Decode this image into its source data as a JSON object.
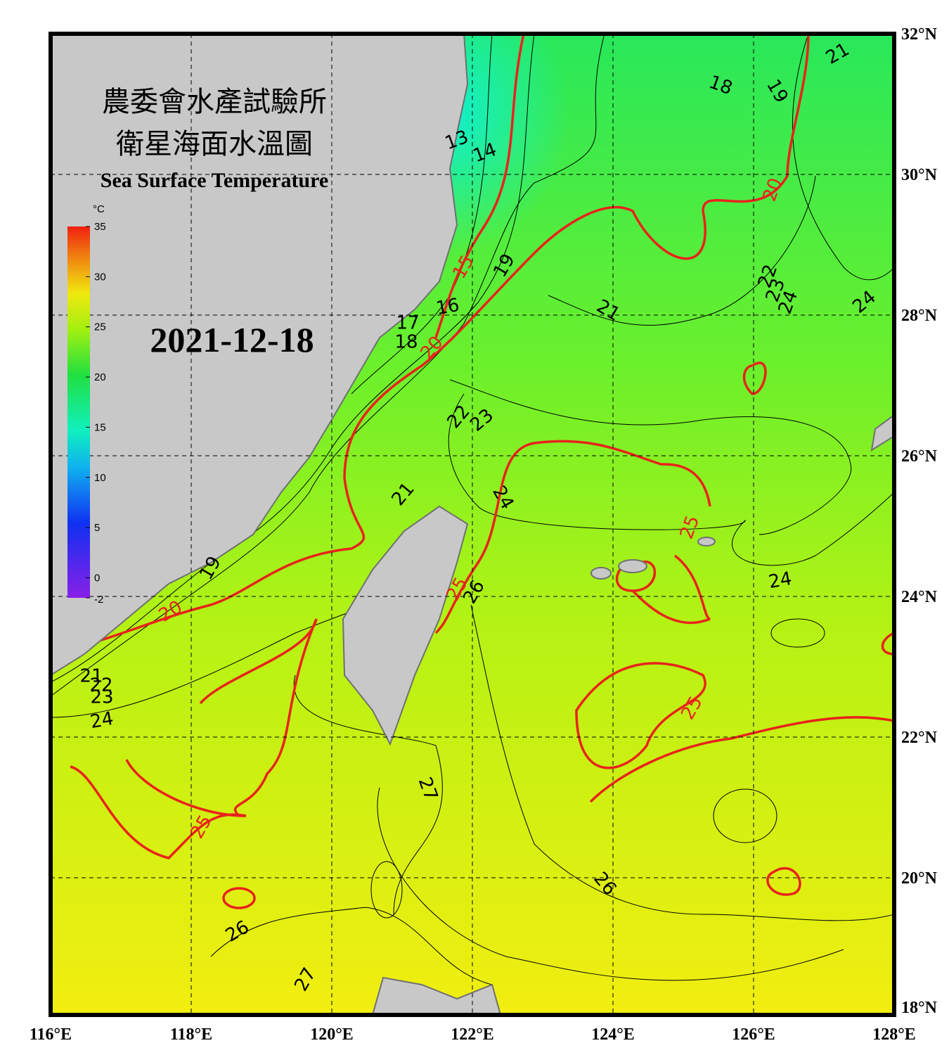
{
  "title_zh_1": "農委會水產試驗所",
  "title_zh_2": "衛星海面水溫圖",
  "title_en": "Sea Surface Temperature",
  "date": "2021-12-18",
  "colorbar": {
    "unit": "°C",
    "ylim": [
      -2,
      35
    ],
    "yticks": [
      35,
      30,
      25,
      20,
      15,
      10,
      5,
      0,
      -2
    ]
  },
  "xlim": [
    116,
    128
  ],
  "ylim": [
    18,
    32
  ],
  "xticks": [
    {
      "value": 116,
      "label": "116°E"
    },
    {
      "value": 118,
      "label": "118°E"
    },
    {
      "value": 120,
      "label": "120°E"
    },
    {
      "value": 122,
      "label": "122°E"
    },
    {
      "value": 124,
      "label": "124°E"
    },
    {
      "value": 126,
      "label": "126°E"
    },
    {
      "value": 128,
      "label": "128°E"
    }
  ],
  "yticks": [
    {
      "value": 18,
      "label": "18°N"
    },
    {
      "value": 20,
      "label": "20°N"
    },
    {
      "value": 22,
      "label": "22°N"
    },
    {
      "value": 24,
      "label": "24°N"
    },
    {
      "value": 26,
      "label": "26°N"
    },
    {
      "value": 28,
      "label": "28°N"
    },
    {
      "value": 30,
      "label": "30°N"
    },
    {
      "value": 32,
      "label": "32°N"
    }
  ],
  "grid": true,
  "major_contour_interval": 5,
  "major_color": "#e8231b",
  "minor_color": "#000000",
  "contour_labels": [
    13,
    14,
    15,
    19,
    16,
    17,
    18,
    20,
    18,
    19,
    21,
    20,
    21,
    22,
    23,
    24,
    24,
    22,
    23,
    21,
    24,
    25,
    24,
    25,
    26,
    19,
    20,
    21,
    22,
    23,
    24,
    25,
    27,
    25,
    26,
    26,
    27
  ]
}
